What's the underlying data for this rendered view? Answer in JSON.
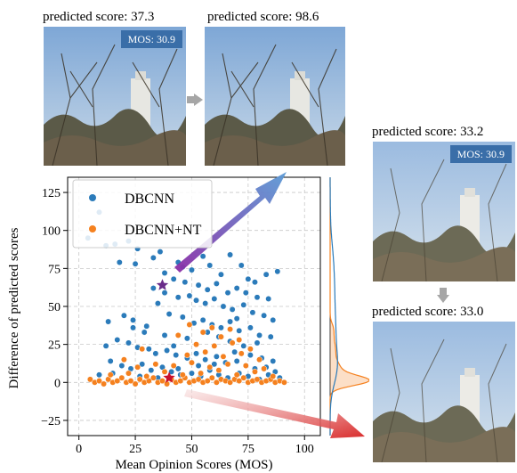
{
  "panels": {
    "left_top": {
      "caption": "predicted score: 37.3",
      "badge": "MOS: 30.9"
    },
    "mid_top": {
      "caption": "predicted score: 98.6"
    },
    "right_upper": {
      "caption": "predicted score: 33.2",
      "badge": "MOS: 30.9"
    },
    "right_lower": {
      "caption": "predicted score: 33.0"
    }
  },
  "colors": {
    "dbcnn": "#2b7bba",
    "nt": "#f5811f",
    "arrow_up_start": "#8b2ca6",
    "arrow_up_end": "#5b9bd5",
    "arrow_down_start": "#f2c8c8",
    "arrow_down_end": "#d92c2c",
    "badge": "#3a6ea8"
  },
  "chart_data": {
    "type": "scatter",
    "xlabel": "Mean Opinion Scores (MOS)",
    "ylabel": "Difference of predicted scores",
    "xlim": [
      -5,
      107
    ],
    "ylim": [
      -35,
      135
    ],
    "xticks": [
      "0",
      "25",
      "50",
      "75",
      "100"
    ],
    "yticks": [
      "−25",
      "0",
      "25",
      "50",
      "75",
      "100",
      "125"
    ],
    "xtick_values": [
      0,
      25,
      50,
      75,
      100
    ],
    "ytick_values": [
      -25,
      0,
      25,
      50,
      75,
      100,
      125
    ],
    "grid": true,
    "legend_position": "top-left",
    "marginal": "kde on right side",
    "highlight_points": [
      {
        "series": "DBCNN",
        "x": 37,
        "y": 64,
        "marker": "star",
        "color": "#6a2c8a"
      },
      {
        "series": "DBCNN+NT",
        "x": 40,
        "y": 3,
        "marker": "star",
        "color": "#c8102e"
      }
    ],
    "series": [
      {
        "name": "DBCNN",
        "color": "#2b7bba",
        "points": [
          [
            4,
            95
          ],
          [
            9,
            112
          ],
          [
            12,
            90
          ],
          [
            16,
            91
          ],
          [
            22,
            93
          ],
          [
            26,
            88
          ],
          [
            18,
            79
          ],
          [
            25,
            78
          ],
          [
            33,
            82
          ],
          [
            36,
            86
          ],
          [
            38,
            72
          ],
          [
            44,
            79
          ],
          [
            46,
            76
          ],
          [
            50,
            74
          ],
          [
            55,
            83
          ],
          [
            58,
            77
          ],
          [
            63,
            71
          ],
          [
            67,
            84
          ],
          [
            72,
            77
          ],
          [
            75,
            68
          ],
          [
            78,
            66
          ],
          [
            83,
            71
          ],
          [
            88,
            73
          ],
          [
            42,
            68
          ],
          [
            47,
            66
          ],
          [
            53,
            64
          ],
          [
            57,
            61
          ],
          [
            61,
            65
          ],
          [
            66,
            59
          ],
          [
            70,
            62
          ],
          [
            74,
            59
          ],
          [
            79,
            56
          ],
          [
            84,
            55
          ],
          [
            33,
            62
          ],
          [
            38,
            59
          ],
          [
            44,
            56
          ],
          [
            49,
            57
          ],
          [
            52,
            54
          ],
          [
            56,
            52
          ],
          [
            60,
            55
          ],
          [
            64,
            50
          ],
          [
            68,
            48
          ],
          [
            73,
            51
          ],
          [
            77,
            46
          ],
          [
            82,
            44
          ],
          [
            86,
            41
          ],
          [
            35,
            52
          ],
          [
            40,
            45
          ],
          [
            46,
            43
          ],
          [
            51,
            39
          ],
          [
            55,
            41
          ],
          [
            59,
            38
          ],
          [
            63,
            36
          ],
          [
            67,
            40
          ],
          [
            71,
            34
          ],
          [
            76,
            36
          ],
          [
            80,
            31
          ],
          [
            85,
            30
          ],
          [
            13,
            40
          ],
          [
            20,
            44
          ],
          [
            24,
            36
          ],
          [
            29,
            33
          ],
          [
            12,
            24
          ],
          [
            17,
            28
          ],
          [
            22,
            26
          ],
          [
            26,
            23
          ],
          [
            31,
            22
          ],
          [
            34,
            19
          ],
          [
            39,
            21
          ],
          [
            43,
            18
          ],
          [
            48,
            16
          ],
          [
            52,
            19
          ],
          [
            56,
            15
          ],
          [
            61,
            17
          ],
          [
            65,
            13
          ],
          [
            70,
            14
          ],
          [
            74,
            11
          ],
          [
            78,
            9
          ],
          [
            83,
            10
          ],
          [
            87,
            7
          ],
          [
            14,
            14
          ],
          [
            19,
            11
          ],
          [
            23,
            9
          ],
          [
            28,
            12
          ],
          [
            32,
            8
          ],
          [
            37,
            10
          ],
          [
            41,
            7
          ],
          [
            45,
            5
          ],
          [
            50,
            6
          ],
          [
            54,
            4
          ],
          [
            58,
            8
          ],
          [
            62,
            5
          ],
          [
            66,
            3
          ],
          [
            71,
            6
          ],
          [
            75,
            4
          ],
          [
            80,
            2
          ],
          [
            84,
            5
          ],
          [
            89,
            3
          ],
          [
            9,
            5
          ],
          [
            15,
            6
          ],
          [
            27,
            4
          ],
          [
            35,
            3
          ],
          [
            44,
            9
          ],
          [
            53,
            11
          ],
          [
            60,
            12
          ],
          [
            69,
            20
          ],
          [
            73,
            24
          ],
          [
            79,
            26
          ],
          [
            67,
            27
          ],
          [
            62,
            30
          ],
          [
            57,
            33
          ],
          [
            48,
            29
          ],
          [
            42,
            24
          ],
          [
            38,
            31
          ],
          [
            30,
            37
          ],
          [
            24,
            41
          ],
          [
            70,
            42
          ],
          [
            76,
            18
          ],
          [
            81,
            16
          ],
          [
            86,
            14
          ]
        ]
      },
      {
        "name": "DBCNN+NT",
        "color": "#f5811f",
        "points": [
          [
            5,
            2
          ],
          [
            7,
            0
          ],
          [
            9,
            1
          ],
          [
            11,
            -1
          ],
          [
            13,
            2
          ],
          [
            15,
            0
          ],
          [
            17,
            1
          ],
          [
            19,
            3
          ],
          [
            21,
            0
          ],
          [
            23,
            1
          ],
          [
            25,
            -1
          ],
          [
            27,
            2
          ],
          [
            29,
            0
          ],
          [
            31,
            1
          ],
          [
            33,
            3
          ],
          [
            35,
            0
          ],
          [
            37,
            1
          ],
          [
            39,
            -1
          ],
          [
            41,
            2
          ],
          [
            43,
            0
          ],
          [
            45,
            1
          ],
          [
            47,
            3
          ],
          [
            49,
            0
          ],
          [
            51,
            1
          ],
          [
            53,
            2
          ],
          [
            55,
            0
          ],
          [
            57,
            1
          ],
          [
            59,
            3
          ],
          [
            61,
            0
          ],
          [
            63,
            2
          ],
          [
            65,
            1
          ],
          [
            67,
            0
          ],
          [
            69,
            2
          ],
          [
            71,
            1
          ],
          [
            73,
            3
          ],
          [
            75,
            0
          ],
          [
            77,
            1
          ],
          [
            79,
            2
          ],
          [
            81,
            0
          ],
          [
            83,
            1
          ],
          [
            85,
            2
          ],
          [
            87,
            0
          ],
          [
            89,
            1
          ],
          [
            91,
            0
          ],
          [
            14,
            5
          ],
          [
            22,
            6
          ],
          [
            30,
            4
          ],
          [
            38,
            7
          ],
          [
            46,
            5
          ],
          [
            54,
            6
          ],
          [
            62,
            8
          ],
          [
            70,
            5
          ],
          [
            78,
            7
          ],
          [
            86,
            4
          ],
          [
            34,
            12
          ],
          [
            42,
            11
          ],
          [
            50,
            13
          ],
          [
            58,
            10
          ],
          [
            66,
            12
          ],
          [
            74,
            11
          ],
          [
            82,
            9
          ],
          [
            48,
            18
          ],
          [
            56,
            20
          ],
          [
            64,
            17
          ],
          [
            72,
            19
          ],
          [
            80,
            15
          ],
          [
            52,
            25
          ],
          [
            60,
            24
          ],
          [
            68,
            26
          ],
          [
            76,
            22
          ],
          [
            44,
            31
          ],
          [
            55,
            33
          ],
          [
            63,
            30
          ],
          [
            71,
            28
          ],
          [
            49,
            38
          ],
          [
            59,
            36
          ],
          [
            67,
            35
          ],
          [
            28,
            22
          ],
          [
            20,
            15
          ],
          [
            26,
            10
          ]
        ]
      }
    ]
  }
}
